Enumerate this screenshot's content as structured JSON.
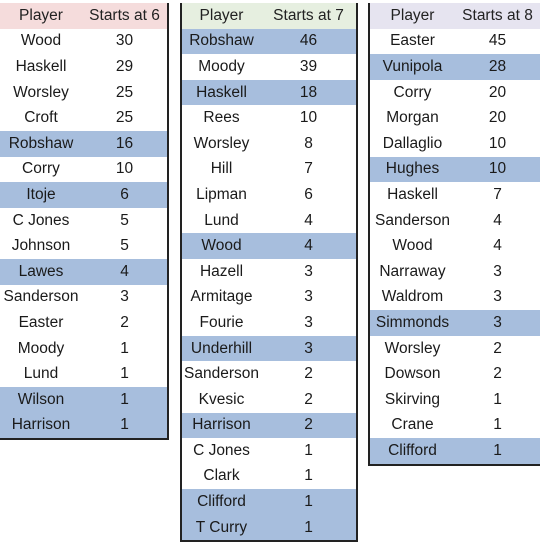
{
  "tables": [
    {
      "header": {
        "player": "Player",
        "starts": "Starts at 6"
      },
      "rows": [
        {
          "player": "Wood",
          "starts": "30",
          "highlight": false
        },
        {
          "player": "Haskell",
          "starts": "29",
          "highlight": false
        },
        {
          "player": "Worsley",
          "starts": "25",
          "highlight": false
        },
        {
          "player": "Croft",
          "starts": "25",
          "highlight": false
        },
        {
          "player": "Robshaw",
          "starts": "16",
          "highlight": true
        },
        {
          "player": "Corry",
          "starts": "10",
          "highlight": false
        },
        {
          "player": "Itoje",
          "starts": "6",
          "highlight": true
        },
        {
          "player": "C Jones",
          "starts": "5",
          "highlight": false
        },
        {
          "player": "Johnson",
          "starts": "5",
          "highlight": false
        },
        {
          "player": "Lawes",
          "starts": "4",
          "highlight": true
        },
        {
          "player": "Sanderson",
          "starts": "3",
          "highlight": false
        },
        {
          "player": "Easter",
          "starts": "2",
          "highlight": false
        },
        {
          "player": "Moody",
          "starts": "1",
          "highlight": false
        },
        {
          "player": "Lund",
          "starts": "1",
          "highlight": false
        },
        {
          "player": "Wilson",
          "starts": "1",
          "highlight": true
        },
        {
          "player": "Harrison",
          "starts": "1",
          "highlight": true
        }
      ]
    },
    {
      "header": {
        "player": "Player",
        "starts": "Starts at 7"
      },
      "rows": [
        {
          "player": "Robshaw",
          "starts": "46",
          "highlight": true
        },
        {
          "player": "Moody",
          "starts": "39",
          "highlight": false
        },
        {
          "player": "Haskell",
          "starts": "18",
          "highlight": true
        },
        {
          "player": "Rees",
          "starts": "10",
          "highlight": false
        },
        {
          "player": "Worsley",
          "starts": "8",
          "highlight": false
        },
        {
          "player": "Hill",
          "starts": "7",
          "highlight": false
        },
        {
          "player": "Lipman",
          "starts": "6",
          "highlight": false
        },
        {
          "player": "Lund",
          "starts": "4",
          "highlight": false
        },
        {
          "player": "Wood",
          "starts": "4",
          "highlight": true
        },
        {
          "player": "Hazell",
          "starts": "3",
          "highlight": false
        },
        {
          "player": "Armitage",
          "starts": "3",
          "highlight": false
        },
        {
          "player": "Fourie",
          "starts": "3",
          "highlight": false
        },
        {
          "player": "Underhill",
          "starts": "3",
          "highlight": true
        },
        {
          "player": "Sanderson",
          "starts": "2",
          "highlight": false
        },
        {
          "player": "Kvesic",
          "starts": "2",
          "highlight": false
        },
        {
          "player": "Harrison",
          "starts": "2",
          "highlight": true
        },
        {
          "player": "C Jones",
          "starts": "1",
          "highlight": false
        },
        {
          "player": "Clark",
          "starts": "1",
          "highlight": false
        },
        {
          "player": "Clifford",
          "starts": "1",
          "highlight": true
        },
        {
          "player": "T Curry",
          "starts": "1",
          "highlight": true
        }
      ]
    },
    {
      "header": {
        "player": "Player",
        "starts": "Starts at 8"
      },
      "rows": [
        {
          "player": "Easter",
          "starts": "45",
          "highlight": false
        },
        {
          "player": "Vunipola",
          "starts": "28",
          "highlight": true
        },
        {
          "player": "Corry",
          "starts": "20",
          "highlight": false
        },
        {
          "player": "Morgan",
          "starts": "20",
          "highlight": false
        },
        {
          "player": "Dallaglio",
          "starts": "10",
          "highlight": false
        },
        {
          "player": "Hughes",
          "starts": "10",
          "highlight": true
        },
        {
          "player": "Haskell",
          "starts": "7",
          "highlight": false
        },
        {
          "player": "Sanderson",
          "starts": "4",
          "highlight": false
        },
        {
          "player": "Wood",
          "starts": "4",
          "highlight": false
        },
        {
          "player": "Narraway",
          "starts": "3",
          "highlight": false
        },
        {
          "player": "Waldrom",
          "starts": "3",
          "highlight": false
        },
        {
          "player": "Simmonds",
          "starts": "3",
          "highlight": true
        },
        {
          "player": "Worsley",
          "starts": "2",
          "highlight": false
        },
        {
          "player": "Dowson",
          "starts": "2",
          "highlight": false
        },
        {
          "player": "Skirving",
          "starts": "1",
          "highlight": false
        },
        {
          "player": "Crane",
          "starts": "1",
          "highlight": false
        },
        {
          "player": "Clifford",
          "starts": "1",
          "highlight": true
        }
      ]
    }
  ]
}
